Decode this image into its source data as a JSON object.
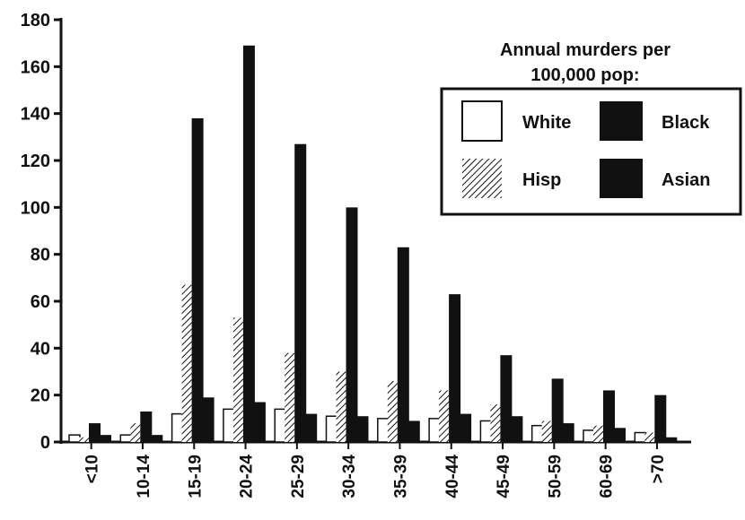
{
  "chart_data": {
    "type": "bar",
    "categories": [
      "<10",
      "10-14",
      "15-19",
      "20-24",
      "25-29",
      "30-34",
      "35-39",
      "40-44",
      "45-49",
      "50-59",
      "60-69",
      ">70"
    ],
    "series": [
      {
        "name": "White",
        "values": [
          3,
          3,
          12,
          14,
          14,
          11,
          10,
          10,
          9,
          7,
          5,
          4
        ]
      },
      {
        "name": "Hisp",
        "values": [
          2,
          8,
          67,
          53,
          38,
          30,
          26,
          22,
          16,
          9,
          7,
          4
        ]
      },
      {
        "name": "Black",
        "values": [
          8,
          13,
          138,
          169,
          127,
          100,
          83,
          63,
          37,
          27,
          22,
          20
        ]
      },
      {
        "name": "Asian",
        "values": [
          3,
          3,
          19,
          17,
          12,
          11,
          9,
          12,
          11,
          8,
          6,
          2
        ]
      }
    ],
    "yticks": [
      0,
      20,
      40,
      60,
      80,
      100,
      120,
      140,
      160,
      180
    ],
    "ylim": [
      0,
      180
    ],
    "legend_title_line1": "Annual murders per",
    "legend_title_line2": "100,000 pop:",
    "legend_position": "top-right",
    "grid": false,
    "colors": {
      "White": "#ffffff",
      "Hisp": "hatched",
      "Black": "#111111",
      "Asian": "#111111"
    }
  }
}
